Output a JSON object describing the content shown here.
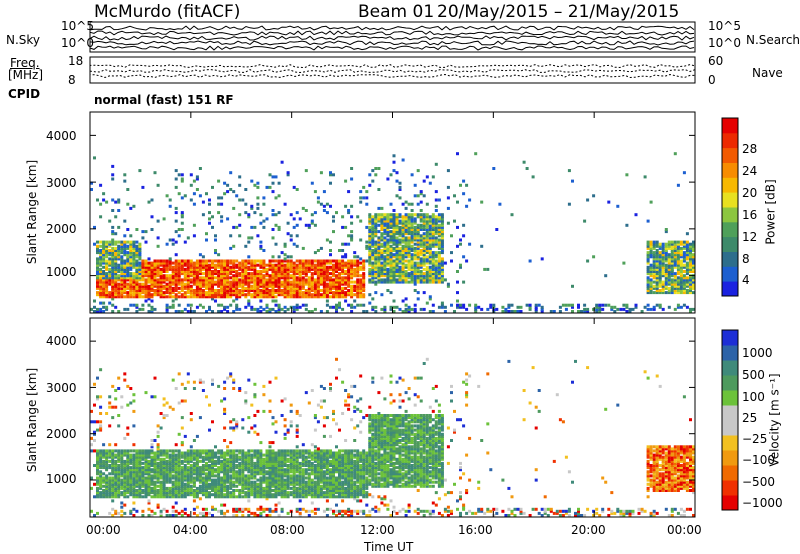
{
  "header": {
    "station": "McMurdo (fitACF)",
    "beam": "Beam 01",
    "dates": "20/May/2015 – 21/May/2015"
  },
  "status_panel": {
    "left_label_1": "N.Sky",
    "left_label_2_line1": "Freq.",
    "left_label_2_line2": "[MHz]",
    "left_label_3": "CPID",
    "right_label_1": "N.Search",
    "right_label_2": "Nave",
    "nsky_ticks": [
      "10^5",
      "10^0"
    ],
    "freq_ticks": [
      "18",
      "8"
    ],
    "nsearch_ticks": [
      "10^5",
      "10^0"
    ],
    "nave_ticks": [
      "60",
      "0"
    ],
    "cpid_text": "normal (fast) 151 RF"
  },
  "colors": {
    "power_scale": [
      "#1a22e0",
      "#1c5fd0",
      "#2d6e8c",
      "#3d8a6a",
      "#4fa05a",
      "#8cc640",
      "#e8e020",
      "#f7b800",
      "#f78c00",
      "#f25a00",
      "#ec2a00",
      "#e50000"
    ],
    "velocity_scale": [
      "#1c2ed6",
      "#2c63a8",
      "#3f8a7a",
      "#4e9a5e",
      "#6cc23a",
      "#c8c8c8",
      "#c8c8c8",
      "#f2c020",
      "#f09a10",
      "#f06a00",
      "#f03000",
      "#e50000"
    ]
  },
  "chart_data": [
    {
      "type": "heatmap",
      "name": "power",
      "ylabel": "Slant Range [km]",
      "ylim": [
        200,
        4500
      ],
      "y_ticks": [
        "1000",
        "2000",
        "3000",
        "4000"
      ],
      "xlim_hours": [
        0,
        24
      ],
      "colorbar_label": "Power [dB]",
      "colorbar_ticks": [
        "4",
        "8",
        "12",
        "16",
        "20",
        "24",
        "28"
      ],
      "regions": [
        {
          "t0": 0.2,
          "t1": 10.8,
          "r0": 500,
          "r1": 1300,
          "level": "high"
        },
        {
          "t0": 0.2,
          "t1": 2.0,
          "r0": 900,
          "r1": 1700,
          "level": "mid"
        },
        {
          "t0": 11.0,
          "t1": 14.0,
          "r0": 800,
          "r1": 2300,
          "level": "mid"
        },
        {
          "t0": 22.0,
          "t1": 24.0,
          "r0": 600,
          "r1": 1700,
          "level": "mid"
        }
      ]
    },
    {
      "type": "heatmap",
      "name": "velocity",
      "ylabel": "Slant Range [km]",
      "ylim": [
        200,
        4500
      ],
      "y_ticks": [
        "1000",
        "2000",
        "3000",
        "4000"
      ],
      "xlabel": "Time UT",
      "x_ticks": [
        "00:00",
        "04:00",
        "08:00",
        "12:00",
        "16:00",
        "20:00",
        "00:00"
      ],
      "xlim_hours": [
        0,
        24
      ],
      "colorbar_label": "Velocity [m s⁻¹]",
      "colorbar_ticks": [
        "1000",
        "500",
        "100",
        "25",
        "−25",
        "−100",
        "−500",
        "−1000"
      ],
      "regions": [
        {
          "t0": 0.2,
          "t1": 11.0,
          "r0": 600,
          "r1": 1600,
          "level": "slow"
        },
        {
          "t0": 11.0,
          "t1": 14.0,
          "r0": 800,
          "r1": 2400,
          "level": "slow"
        },
        {
          "t0": 22.0,
          "t1": 24.0,
          "r0": 700,
          "r1": 1700,
          "level": "away"
        }
      ]
    }
  ]
}
